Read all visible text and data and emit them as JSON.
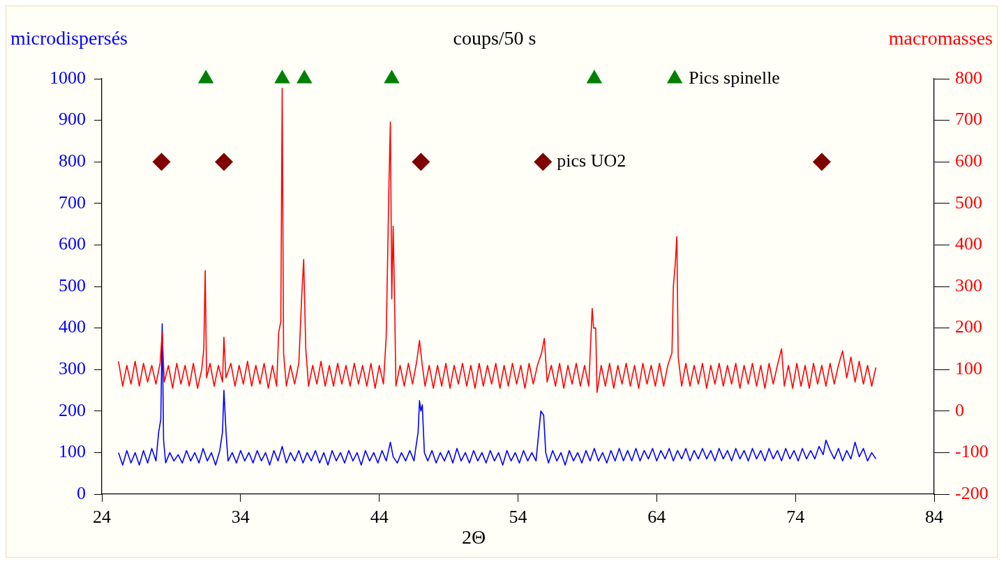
{
  "chart_data": {
    "type": "line",
    "title": "coups/50 s",
    "xlabel": "2Θ",
    "ylabel": "microdispersés",
    "y2label": "macromasses",
    "xlim": [
      24,
      84
    ],
    "xticks": [
      24,
      34,
      44,
      54,
      64,
      74,
      84
    ],
    "ylim": [
      0,
      1000
    ],
    "yticks": [
      0,
      100,
      200,
      300,
      400,
      500,
      600,
      700,
      800,
      900,
      1000
    ],
    "y2lim": [
      -200,
      800
    ],
    "y2ticks": [
      -200,
      -100,
      0,
      100,
      200,
      300,
      400,
      500,
      600,
      700,
      800
    ],
    "grid": false,
    "legend": false,
    "marker": "none",
    "line_style": "solid",
    "annotations": [
      {
        "text": "Pics spinelle",
        "x": 65.3,
        "y": 1000
      },
      {
        "text": "pics UO2",
        "x": 55.8,
        "y": 800
      }
    ],
    "series": [
      {
        "axis": "y2",
        "color": "#ff0000",
        "x": [
          25.2,
          25.5,
          25.8,
          26.1,
          26.4,
          26.7,
          27.0,
          27.3,
          27.6,
          27.9,
          28.2,
          28.35,
          28.5,
          28.8,
          29.1,
          29.4,
          29.7,
          30.0,
          30.3,
          30.6,
          30.9,
          31.2,
          31.35,
          31.45,
          31.55,
          31.8,
          32.1,
          32.4,
          32.7,
          32.8,
          32.95,
          33.3,
          33.6,
          33.9,
          34.2,
          34.5,
          34.8,
          35.1,
          35.4,
          35.7,
          36.0,
          36.3,
          36.6,
          36.75,
          36.9,
          37.0,
          37.1,
          37.3,
          37.6,
          37.9,
          38.2,
          38.4,
          38.55,
          38.7,
          38.9,
          39.2,
          39.5,
          39.8,
          40.1,
          40.4,
          40.7,
          41.0,
          41.3,
          41.6,
          41.9,
          42.2,
          42.5,
          42.8,
          43.1,
          43.4,
          43.7,
          44.0,
          44.3,
          44.5,
          44.7,
          44.8,
          44.9,
          45.0,
          45.1,
          45.2,
          45.5,
          45.8,
          46.1,
          46.4,
          46.7,
          46.9,
          47.1,
          47.3,
          47.6,
          47.9,
          48.2,
          48.5,
          48.8,
          49.1,
          49.4,
          49.7,
          50.0,
          50.3,
          50.6,
          50.9,
          51.2,
          51.5,
          51.8,
          52.1,
          52.4,
          52.7,
          53.0,
          53.3,
          53.6,
          53.9,
          54.2,
          54.5,
          54.8,
          55.1,
          55.4,
          55.7,
          55.9,
          56.1,
          56.4,
          56.7,
          57.0,
          57.3,
          57.6,
          57.9,
          58.2,
          58.5,
          58.8,
          59.1,
          59.35,
          59.45,
          59.6,
          59.7,
          60.0,
          60.3,
          60.6,
          60.9,
          61.2,
          61.5,
          61.8,
          62.1,
          62.4,
          62.7,
          63.0,
          63.3,
          63.6,
          63.9,
          64.2,
          64.5,
          64.8,
          65.1,
          65.2,
          65.35,
          65.45,
          65.55,
          65.8,
          66.1,
          66.4,
          66.7,
          67.0,
          67.3,
          67.6,
          67.9,
          68.2,
          68.5,
          68.8,
          69.1,
          69.4,
          69.7,
          70.0,
          70.3,
          70.6,
          70.9,
          71.2,
          71.5,
          71.8,
          72.1,
          72.4,
          72.7,
          73.0,
          73.2,
          73.5,
          73.8,
          74.1,
          74.4,
          74.7,
          75.0,
          75.3,
          75.6,
          75.9,
          76.2,
          76.5,
          76.8,
          77.1,
          77.4,
          77.7,
          78.0,
          78.3,
          78.6,
          78.9,
          79.2,
          79.5,
          79.8
        ],
        "values": [
          120,
          60,
          110,
          65,
          120,
          60,
          115,
          70,
          110,
          65,
          115,
          190,
          70,
          110,
          55,
          115,
          65,
          110,
          60,
          115,
          55,
          100,
          150,
          338,
          80,
          115,
          60,
          110,
          70,
          178,
          80,
          115,
          60,
          110,
          65,
          120,
          60,
          110,
          65,
          115,
          55,
          110,
          60,
          190,
          215,
          777,
          140,
          60,
          110,
          65,
          115,
          270,
          365,
          150,
          60,
          110,
          65,
          120,
          60,
          110,
          60,
          115,
          65,
          110,
          60,
          115,
          65,
          110,
          60,
          115,
          55,
          110,
          65,
          180,
          550,
          696,
          270,
          445,
          270,
          60,
          110,
          60,
          115,
          65,
          120,
          170,
          110,
          60,
          110,
          55,
          110,
          60,
          115,
          55,
          110,
          65,
          115,
          60,
          110,
          55,
          115,
          60,
          110,
          65,
          115,
          55,
          110,
          60,
          115,
          65,
          110,
          55,
          115,
          65,
          110,
          140,
          175,
          70,
          110,
          60,
          115,
          55,
          110,
          65,
          115,
          60,
          110,
          60,
          247,
          200,
          200,
          45,
          110,
          60,
          115,
          55,
          110,
          65,
          115,
          60,
          110,
          55,
          115,
          65,
          110,
          60,
          115,
          60,
          110,
          140,
          300,
          360,
          420,
          130,
          60,
          115,
          60,
          110,
          65,
          115,
          55,
          110,
          65,
          115,
          60,
          110,
          65,
          115,
          55,
          110,
          65,
          115,
          60,
          110,
          55,
          115,
          65,
          110,
          150,
          60,
          110,
          55,
          115,
          60,
          110,
          55,
          115,
          65,
          110,
          60,
          115,
          65,
          110,
          145,
          80,
          130,
          70,
          120,
          65,
          110,
          60,
          105
        ]
      },
      {
        "axis": "y",
        "color": "#0000ff",
        "x": [
          25.2,
          25.5,
          25.8,
          26.1,
          26.4,
          26.7,
          27.0,
          27.3,
          27.6,
          27.9,
          28.1,
          28.25,
          28.35,
          28.45,
          28.6,
          28.9,
          29.2,
          29.5,
          29.8,
          30.1,
          30.4,
          30.7,
          31.0,
          31.3,
          31.6,
          31.9,
          32.2,
          32.5,
          32.7,
          32.8,
          32.95,
          33.1,
          33.4,
          33.7,
          34.0,
          34.3,
          34.6,
          34.9,
          35.2,
          35.5,
          35.8,
          36.1,
          36.4,
          36.7,
          37.0,
          37.3,
          37.6,
          37.9,
          38.2,
          38.5,
          38.8,
          39.1,
          39.4,
          39.7,
          40.0,
          40.3,
          40.6,
          40.9,
          41.2,
          41.5,
          41.8,
          42.1,
          42.4,
          42.7,
          43.0,
          43.3,
          43.6,
          43.9,
          44.2,
          44.5,
          44.8,
          45.0,
          45.3,
          45.6,
          45.9,
          46.2,
          46.5,
          46.8,
          46.9,
          47.0,
          47.1,
          47.25,
          47.5,
          47.8,
          48.1,
          48.4,
          48.7,
          49.0,
          49.3,
          49.6,
          49.9,
          50.2,
          50.5,
          50.8,
          51.1,
          51.4,
          51.7,
          52.0,
          52.3,
          52.6,
          52.9,
          53.2,
          53.5,
          53.8,
          54.1,
          54.4,
          54.7,
          55.0,
          55.3,
          55.5,
          55.65,
          55.85,
          56.0,
          56.2,
          56.5,
          56.8,
          57.1,
          57.4,
          57.7,
          58.0,
          58.3,
          58.6,
          58.9,
          59.2,
          59.5,
          59.8,
          60.1,
          60.4,
          60.7,
          61.0,
          61.3,
          61.6,
          61.9,
          62.2,
          62.5,
          62.8,
          63.1,
          63.4,
          63.7,
          64.0,
          64.3,
          64.6,
          64.9,
          65.2,
          65.5,
          65.8,
          66.1,
          66.4,
          66.7,
          67.0,
          67.3,
          67.6,
          67.9,
          68.2,
          68.5,
          68.8,
          69.1,
          69.4,
          69.7,
          70.0,
          70.3,
          70.6,
          70.9,
          71.2,
          71.5,
          71.8,
          72.1,
          72.4,
          72.7,
          73.0,
          73.3,
          73.6,
          73.9,
          74.2,
          74.5,
          74.8,
          75.1,
          75.4,
          75.7,
          76.0,
          76.2,
          76.5,
          76.8,
          77.1,
          77.4,
          77.7,
          78.0,
          78.3,
          78.6,
          78.9,
          79.2,
          79.5,
          79.8
        ],
        "values": [
          100,
          70,
          105,
          75,
          100,
          70,
          105,
          75,
          110,
          80,
          150,
          180,
          410,
          130,
          75,
          100,
          80,
          95,
          75,
          105,
          80,
          100,
          75,
          110,
          80,
          100,
          70,
          105,
          150,
          250,
          150,
          80,
          100,
          75,
          105,
          80,
          100,
          75,
          105,
          80,
          100,
          70,
          105,
          80,
          115,
          75,
          100,
          80,
          105,
          75,
          100,
          80,
          105,
          75,
          100,
          70,
          105,
          80,
          100,
          75,
          105,
          80,
          100,
          70,
          105,
          80,
          100,
          75,
          105,
          80,
          125,
          90,
          75,
          100,
          80,
          105,
          80,
          150,
          225,
          200,
          215,
          100,
          80,
          105,
          75,
          100,
          80,
          105,
          75,
          110,
          80,
          100,
          75,
          105,
          80,
          100,
          75,
          105,
          80,
          100,
          70,
          105,
          80,
          100,
          75,
          105,
          80,
          100,
          80,
          150,
          200,
          190,
          100,
          75,
          105,
          80,
          100,
          70,
          105,
          80,
          100,
          75,
          105,
          80,
          110,
          80,
          100,
          75,
          105,
          80,
          110,
          80,
          105,
          80,
          110,
          80,
          105,
          85,
          110,
          80,
          105,
          85,
          110,
          80,
          105,
          85,
          110,
          80,
          105,
          85,
          110,
          85,
          105,
          80,
          110,
          85,
          105,
          80,
          110,
          85,
          105,
          80,
          110,
          85,
          105,
          80,
          110,
          85,
          105,
          80,
          110,
          85,
          105,
          80,
          110,
          85,
          105,
          85,
          115,
          95,
          130,
          105,
          85,
          110,
          80,
          105,
          85,
          125,
          90,
          110,
          80,
          100,
          85
        ]
      },
      {
        "type": "scatter",
        "axis": "y",
        "color": "#008000",
        "marker": "triangle",
        "x": [
          31.5,
          37.0,
          38.6,
          44.9,
          59.5,
          65.3
        ],
        "values": [
          1000,
          1000,
          1000,
          1000,
          1000,
          1000
        ]
      },
      {
        "type": "scatter",
        "axis": "y",
        "color": "#800000",
        "marker": "diamond",
        "x": [
          28.3,
          32.8,
          47.0,
          55.8,
          75.9
        ],
        "values": [
          800,
          800,
          800,
          800,
          800
        ]
      }
    ]
  }
}
